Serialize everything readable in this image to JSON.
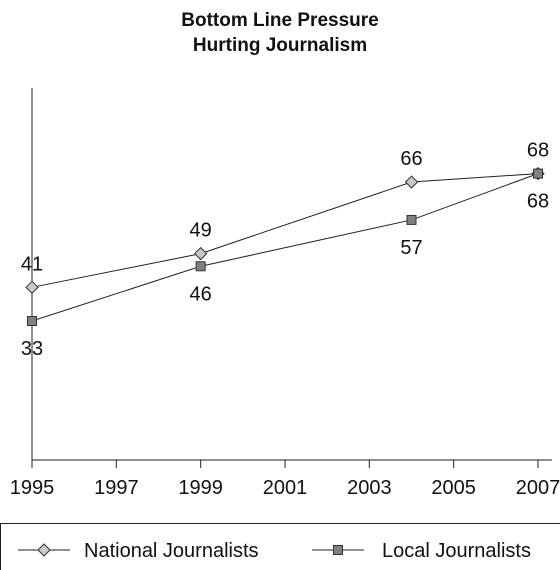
{
  "chart_data": {
    "type": "line",
    "title": "Bottom Line Pressure\nHurting Journalism",
    "xlabel": "",
    "ylabel": "",
    "x": [
      1995,
      1999,
      2004,
      2007
    ],
    "xticks": [
      "1995",
      "1997",
      "1999",
      "2001",
      "2003",
      "2005",
      "2007"
    ],
    "xlim": [
      1995,
      2007
    ],
    "ylim": [
      0,
      85
    ],
    "grid": false,
    "legend_position": "bottom",
    "series": [
      {
        "name": "National Journalists",
        "values": [
          41,
          49,
          66,
          68
        ],
        "marker": "diamond",
        "color": "#c8c8c8",
        "labels": [
          "41",
          "49",
          "66",
          "68"
        ],
        "label_pos": [
          "above",
          "above",
          "above",
          "above"
        ]
      },
      {
        "name": "Local Journalists",
        "values": [
          33,
          46,
          57,
          68
        ],
        "marker": "square",
        "color": "#808080",
        "labels": [
          "33",
          "46",
          "57",
          "68"
        ],
        "label_pos": [
          "below",
          "below",
          "below",
          "below"
        ]
      }
    ]
  }
}
